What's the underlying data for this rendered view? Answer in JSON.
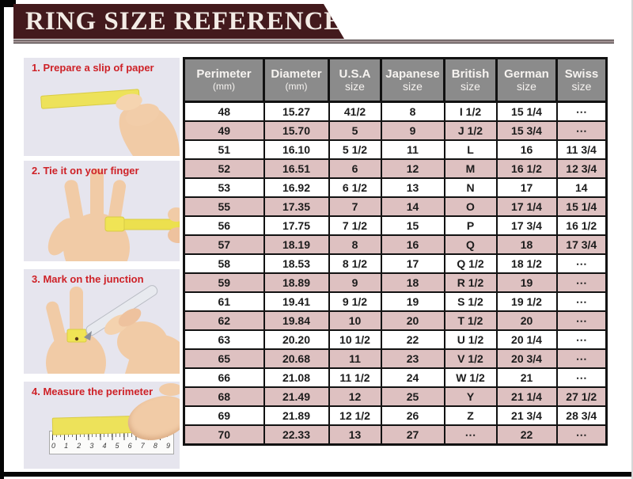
{
  "banner": {
    "title": "RING SIZE REFERENCE"
  },
  "steps": [
    {
      "label": "1. Prepare a slip of paper"
    },
    {
      "label": "2. Tie it on your finger"
    },
    {
      "label": "3. Mark on the junction"
    },
    {
      "label": "4. Measure the perimeter"
    }
  ],
  "ruler": {
    "numbers": [
      "0",
      "1",
      "2",
      "3",
      "4",
      "5",
      "6",
      "7",
      "8",
      "9"
    ]
  },
  "colors": {
    "banner_maroon": "#431a1d",
    "row_pink": "#dec1c1",
    "header_gray": "#8b8b8b",
    "caption_red": "#ce2127",
    "photo_background": "#e6e5ee",
    "paper_yellow": "#ede25a"
  },
  "table": {
    "headers": [
      {
        "line1": "Perimeter",
        "line2": "(mm)"
      },
      {
        "line1": "Diameter",
        "line2": "(mm)"
      },
      {
        "line1": "U.S.A",
        "line2": "size"
      },
      {
        "line1": "Japanese",
        "line2": "size"
      },
      {
        "line1": "British",
        "line2": "size"
      },
      {
        "line1": "German",
        "line2": "size"
      },
      {
        "line1": "Swiss",
        "line2": "size"
      }
    ]
  },
  "chart_data": {
    "type": "table",
    "title": "RING SIZE REFERENCE",
    "columns": [
      "Perimeter (mm)",
      "Diameter (mm)",
      "U.S.A size",
      "Japanese size",
      "British size",
      "German size",
      "Swiss size"
    ],
    "rows": [
      [
        "48",
        "15.27",
        "41/2",
        "8",
        "I 1/2",
        "15 1/4",
        "⋯"
      ],
      [
        "49",
        "15.70",
        "5",
        "9",
        "J 1/2",
        "15 3/4",
        "⋯"
      ],
      [
        "51",
        "16.10",
        "5 1/2",
        "11",
        "L",
        "16",
        "11 3/4"
      ],
      [
        "52",
        "16.51",
        "6",
        "12",
        "M",
        "16 1/2",
        "12 3/4"
      ],
      [
        "53",
        "16.92",
        "6 1/2",
        "13",
        "N",
        "17",
        "14"
      ],
      [
        "55",
        "17.35",
        "7",
        "14",
        "O",
        "17 1/4",
        "15 1/4"
      ],
      [
        "56",
        "17.75",
        "7 1/2",
        "15",
        "P",
        "17 3/4",
        "16 1/2"
      ],
      [
        "57",
        "18.19",
        "8",
        "16",
        "Q",
        "18",
        "17 3/4"
      ],
      [
        "58",
        "18.53",
        "8 1/2",
        "17",
        "Q 1/2",
        "18 1/2",
        "⋯"
      ],
      [
        "59",
        "18.89",
        "9",
        "18",
        "R 1/2",
        "19",
        "⋯"
      ],
      [
        "61",
        "19.41",
        "9 1/2",
        "19",
        "S 1/2",
        "19 1/2",
        "⋯"
      ],
      [
        "62",
        "19.84",
        "10",
        "20",
        "T 1/2",
        "20",
        "⋯"
      ],
      [
        "63",
        "20.20",
        "10 1/2",
        "22",
        "U 1/2",
        "20 1/4",
        "⋯"
      ],
      [
        "65",
        "20.68",
        "11",
        "23",
        "V 1/2",
        "20 3/4",
        "⋯"
      ],
      [
        "66",
        "21.08",
        "11 1/2",
        "24",
        "W 1/2",
        "21",
        "⋯"
      ],
      [
        "68",
        "21.49",
        "12",
        "25",
        "Y",
        "21 1/4",
        "27 1/2"
      ],
      [
        "69",
        "21.89",
        "12 1/2",
        "26",
        "Z",
        "21 3/4",
        "28 3/4"
      ],
      [
        "70",
        "22.33",
        "13",
        "27",
        "⋯",
        "22",
        "⋯"
      ]
    ]
  }
}
